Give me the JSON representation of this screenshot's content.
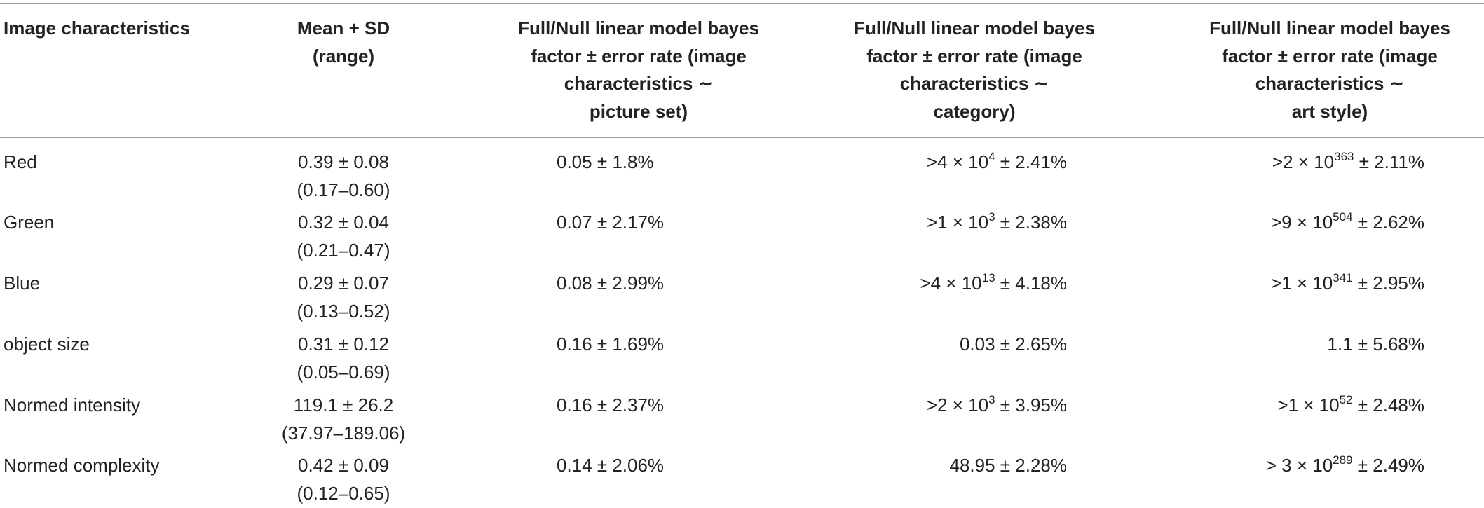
{
  "table": {
    "header": [
      [
        "Image characteristics"
      ],
      [
        "Mean + SD",
        "(range)"
      ],
      [
        "Full/Null linear model bayes",
        "factor ± error rate (image",
        "characteristics ∼",
        "picture set)"
      ],
      [
        "Full/Null linear model bayes",
        "factor ± error rate (image",
        "characteristics ∼",
        "category)"
      ],
      [
        "Full/Null linear model bayes",
        "factor ± error rate (image",
        "characteristics ∼",
        "art style)"
      ]
    ],
    "rows": [
      {
        "label": "Red",
        "mean": {
          "value": "0.39 ± 0.08",
          "range": "(0.17–0.60)"
        },
        "picture_set": "0.05 ± 1.8%",
        "category": {
          "pre": ">4 × 10",
          "sup": "4",
          "post": " ± 2.41%"
        },
        "art_style": {
          "pre": ">2 × 10",
          "sup": "363",
          "post": " ± 2.11%"
        }
      },
      {
        "label": "Green",
        "mean": {
          "value": "0.32 ± 0.04",
          "range": "(0.21–0.47)"
        },
        "picture_set": "0.07 ± 2.17%",
        "category": {
          "pre": ">1 × 10",
          "sup": "3",
          "post": " ± 2.38%"
        },
        "art_style": {
          "pre": ">9 × 10",
          "sup": "504",
          "post": " ± 2.62%"
        }
      },
      {
        "label": "Blue",
        "mean": {
          "value": "0.29 ± 0.07",
          "range": "(0.13–0.52)"
        },
        "picture_set": "0.08 ± 2.99%",
        "category": {
          "pre": ">4 × 10",
          "sup": "13",
          "post": " ± 4.18%"
        },
        "art_style": {
          "pre": ">1 × 10",
          "sup": "341",
          "post": " ± 2.95%"
        }
      },
      {
        "label": "object size",
        "mean": {
          "value": "0.31 ± 0.12",
          "range": "(0.05–0.69)"
        },
        "picture_set": "0.16 ± 1.69%",
        "category": "0.03 ± 2.65%",
        "art_style": "1.1 ± 5.68%"
      },
      {
        "label": "Normed intensity",
        "mean": {
          "value": "119.1 ± 26.2",
          "range": "(37.97–189.06)"
        },
        "picture_set": "0.16 ± 2.37%",
        "category": {
          "pre": ">2 × 10",
          "sup": "3",
          "post": " ± 3.95%"
        },
        "art_style": {
          "pre": ">1 × 10",
          "sup": "52",
          "post": " ± 2.48%"
        }
      },
      {
        "label": "Normed complexity",
        "mean": {
          "value": "0.42 ± 0.09",
          "range": "(0.12–0.65)"
        },
        "picture_set": "0.14 ± 2.06%",
        "category": "48.95 ± 2.28%",
        "art_style": {
          "pre": "> 3 × 10",
          "sup": "289",
          "post": " ± 2.49%"
        }
      }
    ]
  }
}
